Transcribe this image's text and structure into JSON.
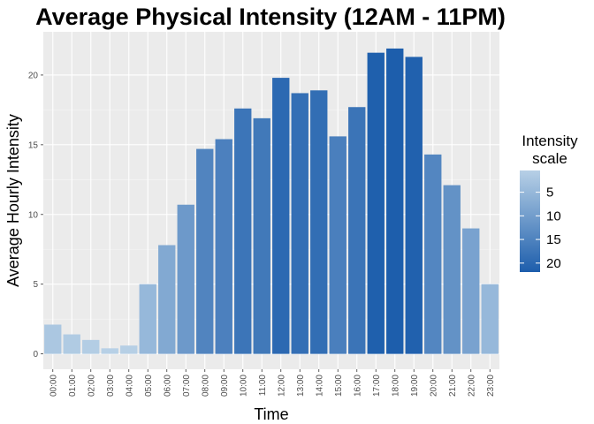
{
  "chart_data": {
    "type": "bar",
    "title": "Average Physical Intensity (12AM - 11PM)",
    "xlabel": "Time",
    "ylabel": "Average Hourly Intensity",
    "categories": [
      "00:00",
      "01:00",
      "02:00",
      "03:00",
      "04:00",
      "05:00",
      "06:00",
      "07:00",
      "08:00",
      "09:00",
      "10:00",
      "11:00",
      "12:00",
      "13:00",
      "14:00",
      "15:00",
      "16:00",
      "17:00",
      "18:00",
      "19:00",
      "20:00",
      "21:00",
      "22:00",
      "23:00"
    ],
    "values": [
      2.1,
      1.4,
      1.0,
      0.4,
      0.6,
      5.0,
      7.8,
      10.7,
      14.7,
      15.4,
      17.6,
      16.9,
      19.8,
      18.7,
      18.9,
      15.6,
      17.7,
      21.6,
      21.9,
      21.3,
      14.3,
      12.1,
      9.0,
      5.0
    ],
    "ylim": [
      -1.1,
      23.1
    ],
    "yticks": [
      0,
      5,
      10,
      15,
      20
    ],
    "grid": true,
    "legend": {
      "title_lines": [
        "Intensity",
        "scale"
      ],
      "ticks": [
        5,
        10,
        15,
        20
      ],
      "placement": "right",
      "low_color": "#b7d0e6",
      "high_color": "#1d5eac"
    },
    "colors": {
      "panel": "#ebebeb",
      "grid_major": "#ffffff",
      "grid_minor": "#f5f5f5"
    }
  }
}
